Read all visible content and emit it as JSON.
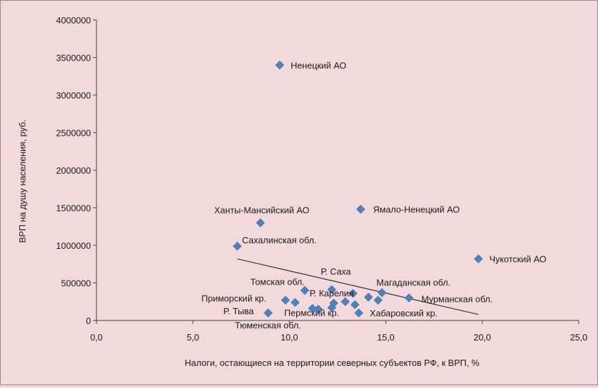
{
  "chart_data": {
    "type": "scatter",
    "title": "",
    "xlabel": "Налоги, остающиеся на территории северных субъектов РФ, к ВРП, %",
    "ylabel": "ВРП на душу населения, руб.",
    "xlim": [
      0,
      25
    ],
    "ylim": [
      0,
      4000000
    ],
    "x_ticks": [
      "0,0",
      "5,0",
      "10,0",
      "15,0",
      "20,0",
      "25,0"
    ],
    "y_ticks": [
      "0",
      "500000",
      "1000000",
      "1500000",
      "2000000",
      "2500000",
      "3000000",
      "3500000",
      "4000000"
    ],
    "grid": false,
    "legend": "none",
    "marker_color": "#4f81bd",
    "points": [
      {
        "x": 9.5,
        "y": 3400000,
        "label": "Ненецкий АО"
      },
      {
        "x": 13.7,
        "y": 1480000,
        "label": "Ямало-Ненецкий АО"
      },
      {
        "x": 8.5,
        "y": 1300000,
        "label": "Ханты-Мансийский АО"
      },
      {
        "x": 7.3,
        "y": 990000,
        "label": "Сахалинская обл."
      },
      {
        "x": 19.8,
        "y": 820000,
        "label": "Чукотский АО"
      },
      {
        "x": 12.2,
        "y": 410000,
        "label": "Р. Саха"
      },
      {
        "x": 10.8,
        "y": 400000,
        "label": "Томская обл."
      },
      {
        "x": 14.8,
        "y": 370000,
        "label": "Магаданская обл."
      },
      {
        "x": 13.3,
        "y": 360000,
        "label": "Р. Карелия"
      },
      {
        "x": 16.2,
        "y": 300000,
        "label": "Мурманская обл."
      },
      {
        "x": 9.8,
        "y": 270000,
        "label": "Приморский кр."
      },
      {
        "x": 8.9,
        "y": 100000,
        "label": "Р. Тыва"
      },
      {
        "x": 12.2,
        "y": 170000,
        "label": "Пермский кр."
      },
      {
        "x": 13.6,
        "y": 100000,
        "label": "Хабаровский кр."
      },
      {
        "x": 11.5,
        "y": 150000,
        "label": "Тюменская обл."
      },
      {
        "x": 10.3,
        "y": 240000,
        "label": ""
      },
      {
        "x": 11.2,
        "y": 160000,
        "label": ""
      },
      {
        "x": 12.3,
        "y": 230000,
        "label": ""
      },
      {
        "x": 12.9,
        "y": 250000,
        "label": ""
      },
      {
        "x": 13.4,
        "y": 210000,
        "label": ""
      },
      {
        "x": 14.1,
        "y": 310000,
        "label": ""
      },
      {
        "x": 14.6,
        "y": 270000,
        "label": ""
      }
    ],
    "trendline": {
      "x": [
        7.3,
        19.8
      ],
      "y": [
        820000,
        80000
      ]
    }
  }
}
